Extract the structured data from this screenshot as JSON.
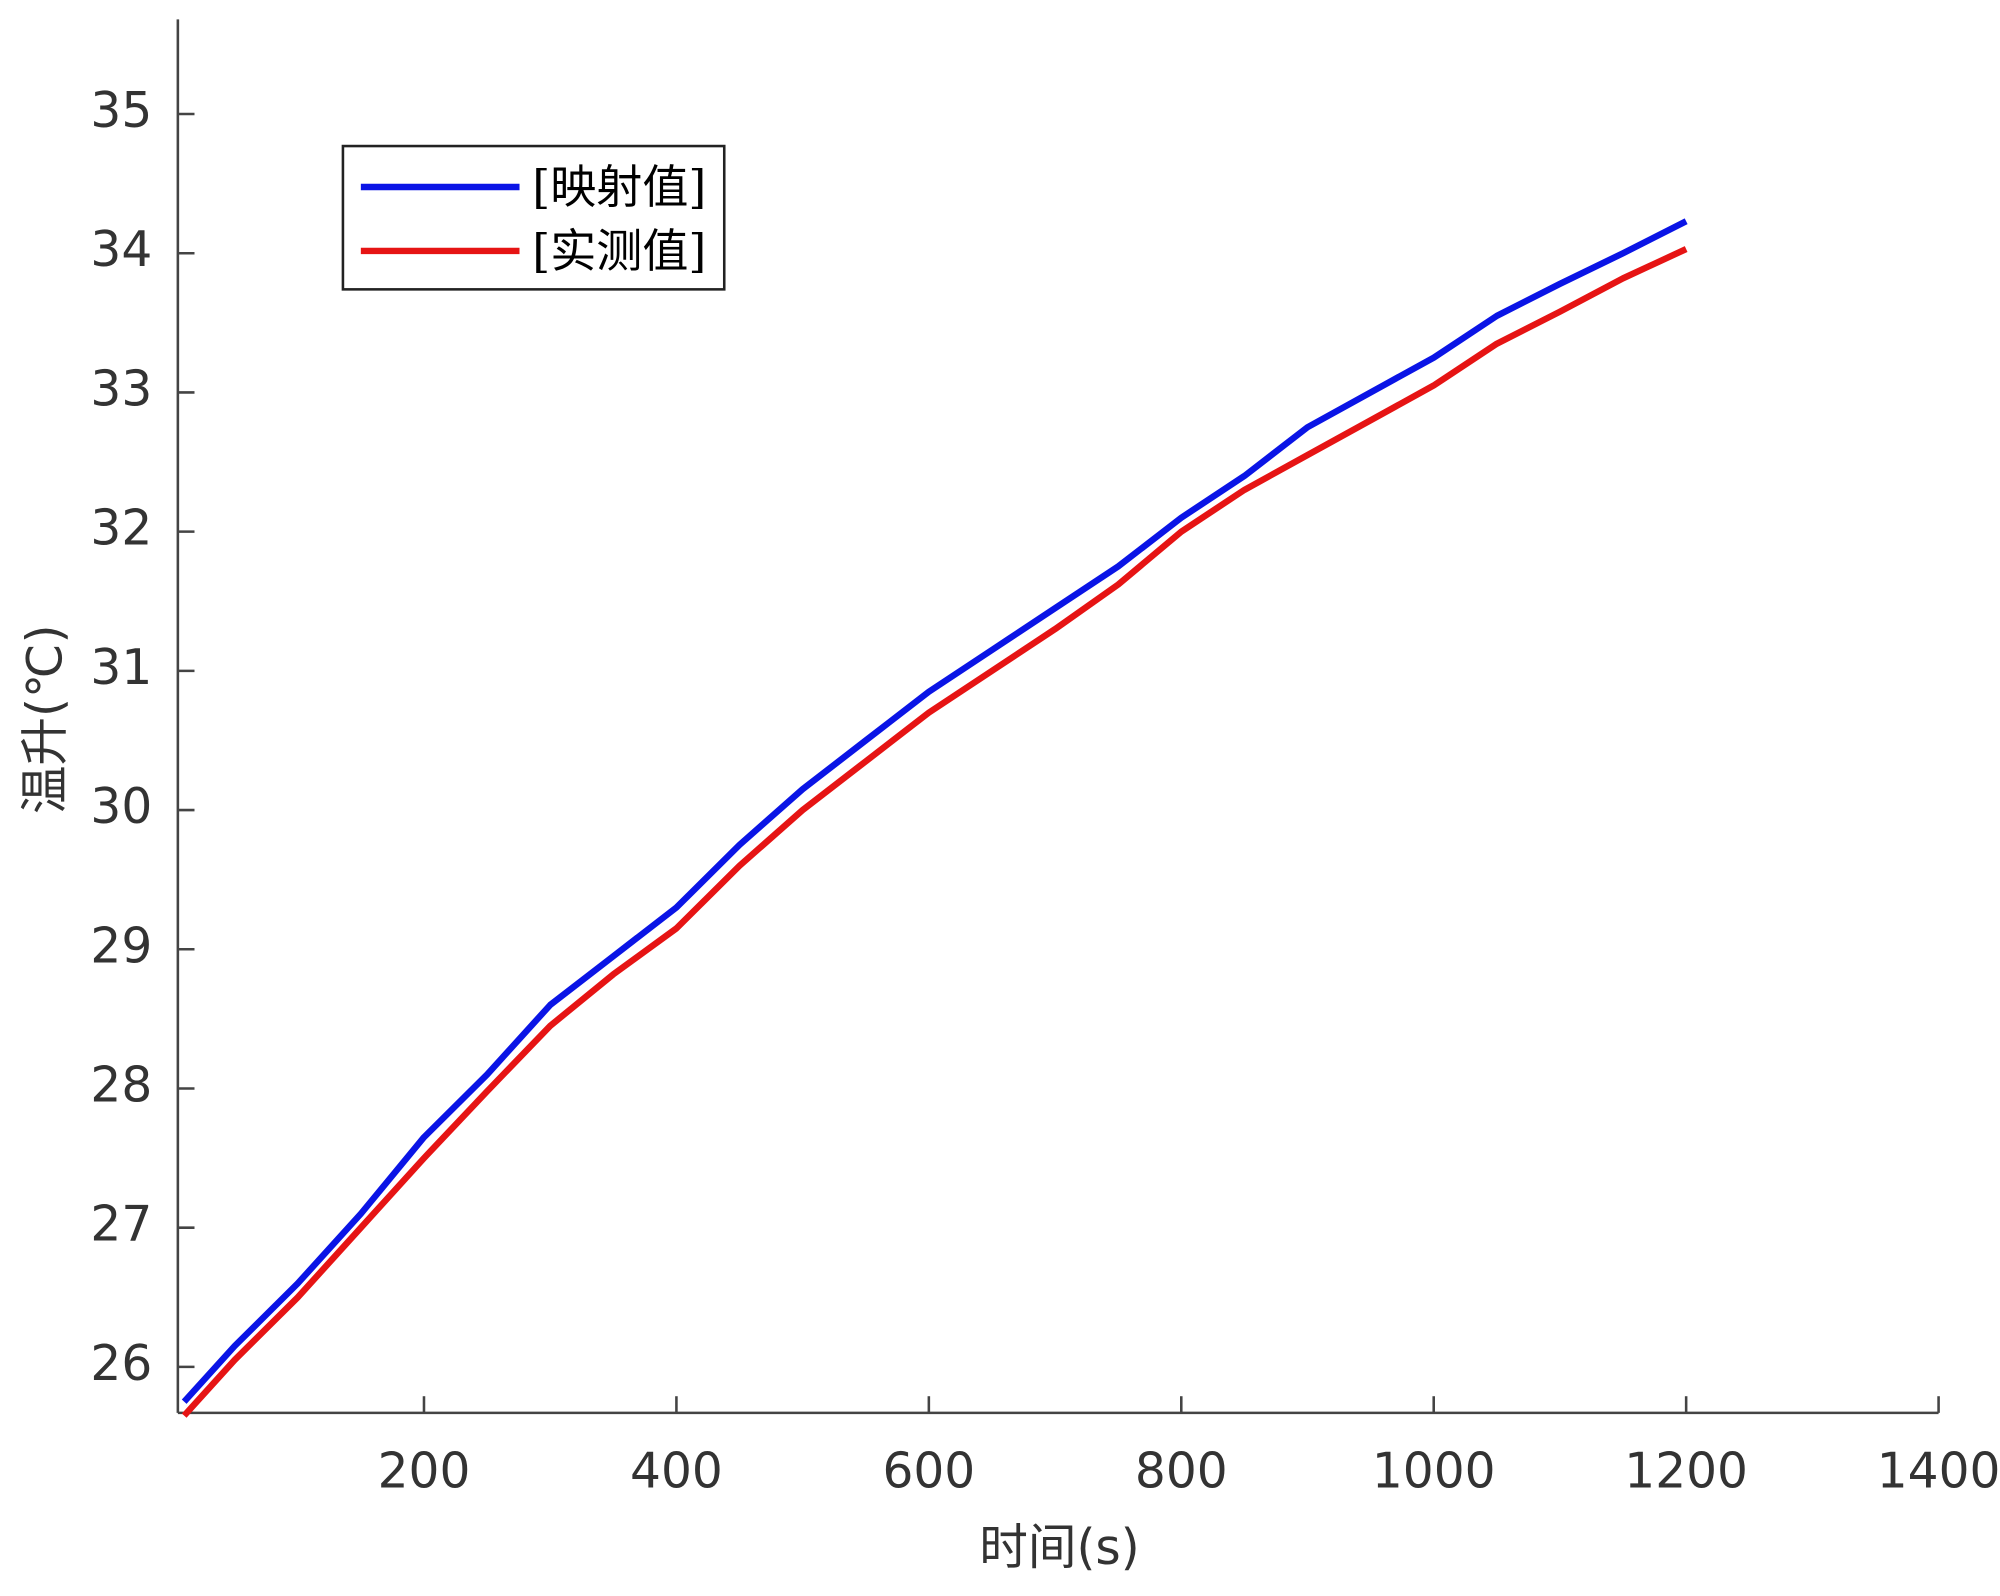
{
  "chart_data": {
    "type": "line",
    "xlabel": "时间(s)",
    "ylabel": "温升(℃)",
    "x": [
      10,
      50,
      100,
      150,
      200,
      250,
      300,
      350,
      400,
      450,
      500,
      550,
      600,
      650,
      700,
      750,
      800,
      850,
      900,
      950,
      1000,
      1050,
      1100,
      1150,
      1200
    ],
    "series": [
      {
        "name": "[映射值]",
        "color": "#0a14e6",
        "values": [
          25.75,
          26.15,
          26.6,
          27.1,
          27.65,
          28.1,
          28.6,
          28.95,
          29.3,
          29.75,
          30.15,
          30.5,
          30.85,
          31.15,
          31.45,
          31.75,
          32.1,
          32.4,
          32.75,
          33.0,
          33.25,
          33.55,
          33.78,
          34.0,
          34.23
        ]
      },
      {
        "name": "[实测值]",
        "color": "#e61414",
        "values": [
          25.65,
          26.05,
          26.5,
          27.0,
          27.5,
          27.98,
          28.45,
          28.82,
          29.15,
          29.6,
          30.0,
          30.35,
          30.7,
          31.0,
          31.3,
          31.62,
          32.0,
          32.3,
          32.55,
          32.8,
          33.05,
          33.35,
          33.58,
          33.82,
          34.03
        ]
      }
    ],
    "xlim": [
      5,
      1400
    ],
    "xticks": [
      200,
      400,
      600,
      800,
      1000,
      1200,
      1400
    ],
    "ylim": [
      25.67,
      35.68
    ],
    "yticks": [
      26,
      27,
      28,
      29,
      30,
      31,
      32,
      33,
      34,
      35
    ],
    "legend": "upper left"
  }
}
